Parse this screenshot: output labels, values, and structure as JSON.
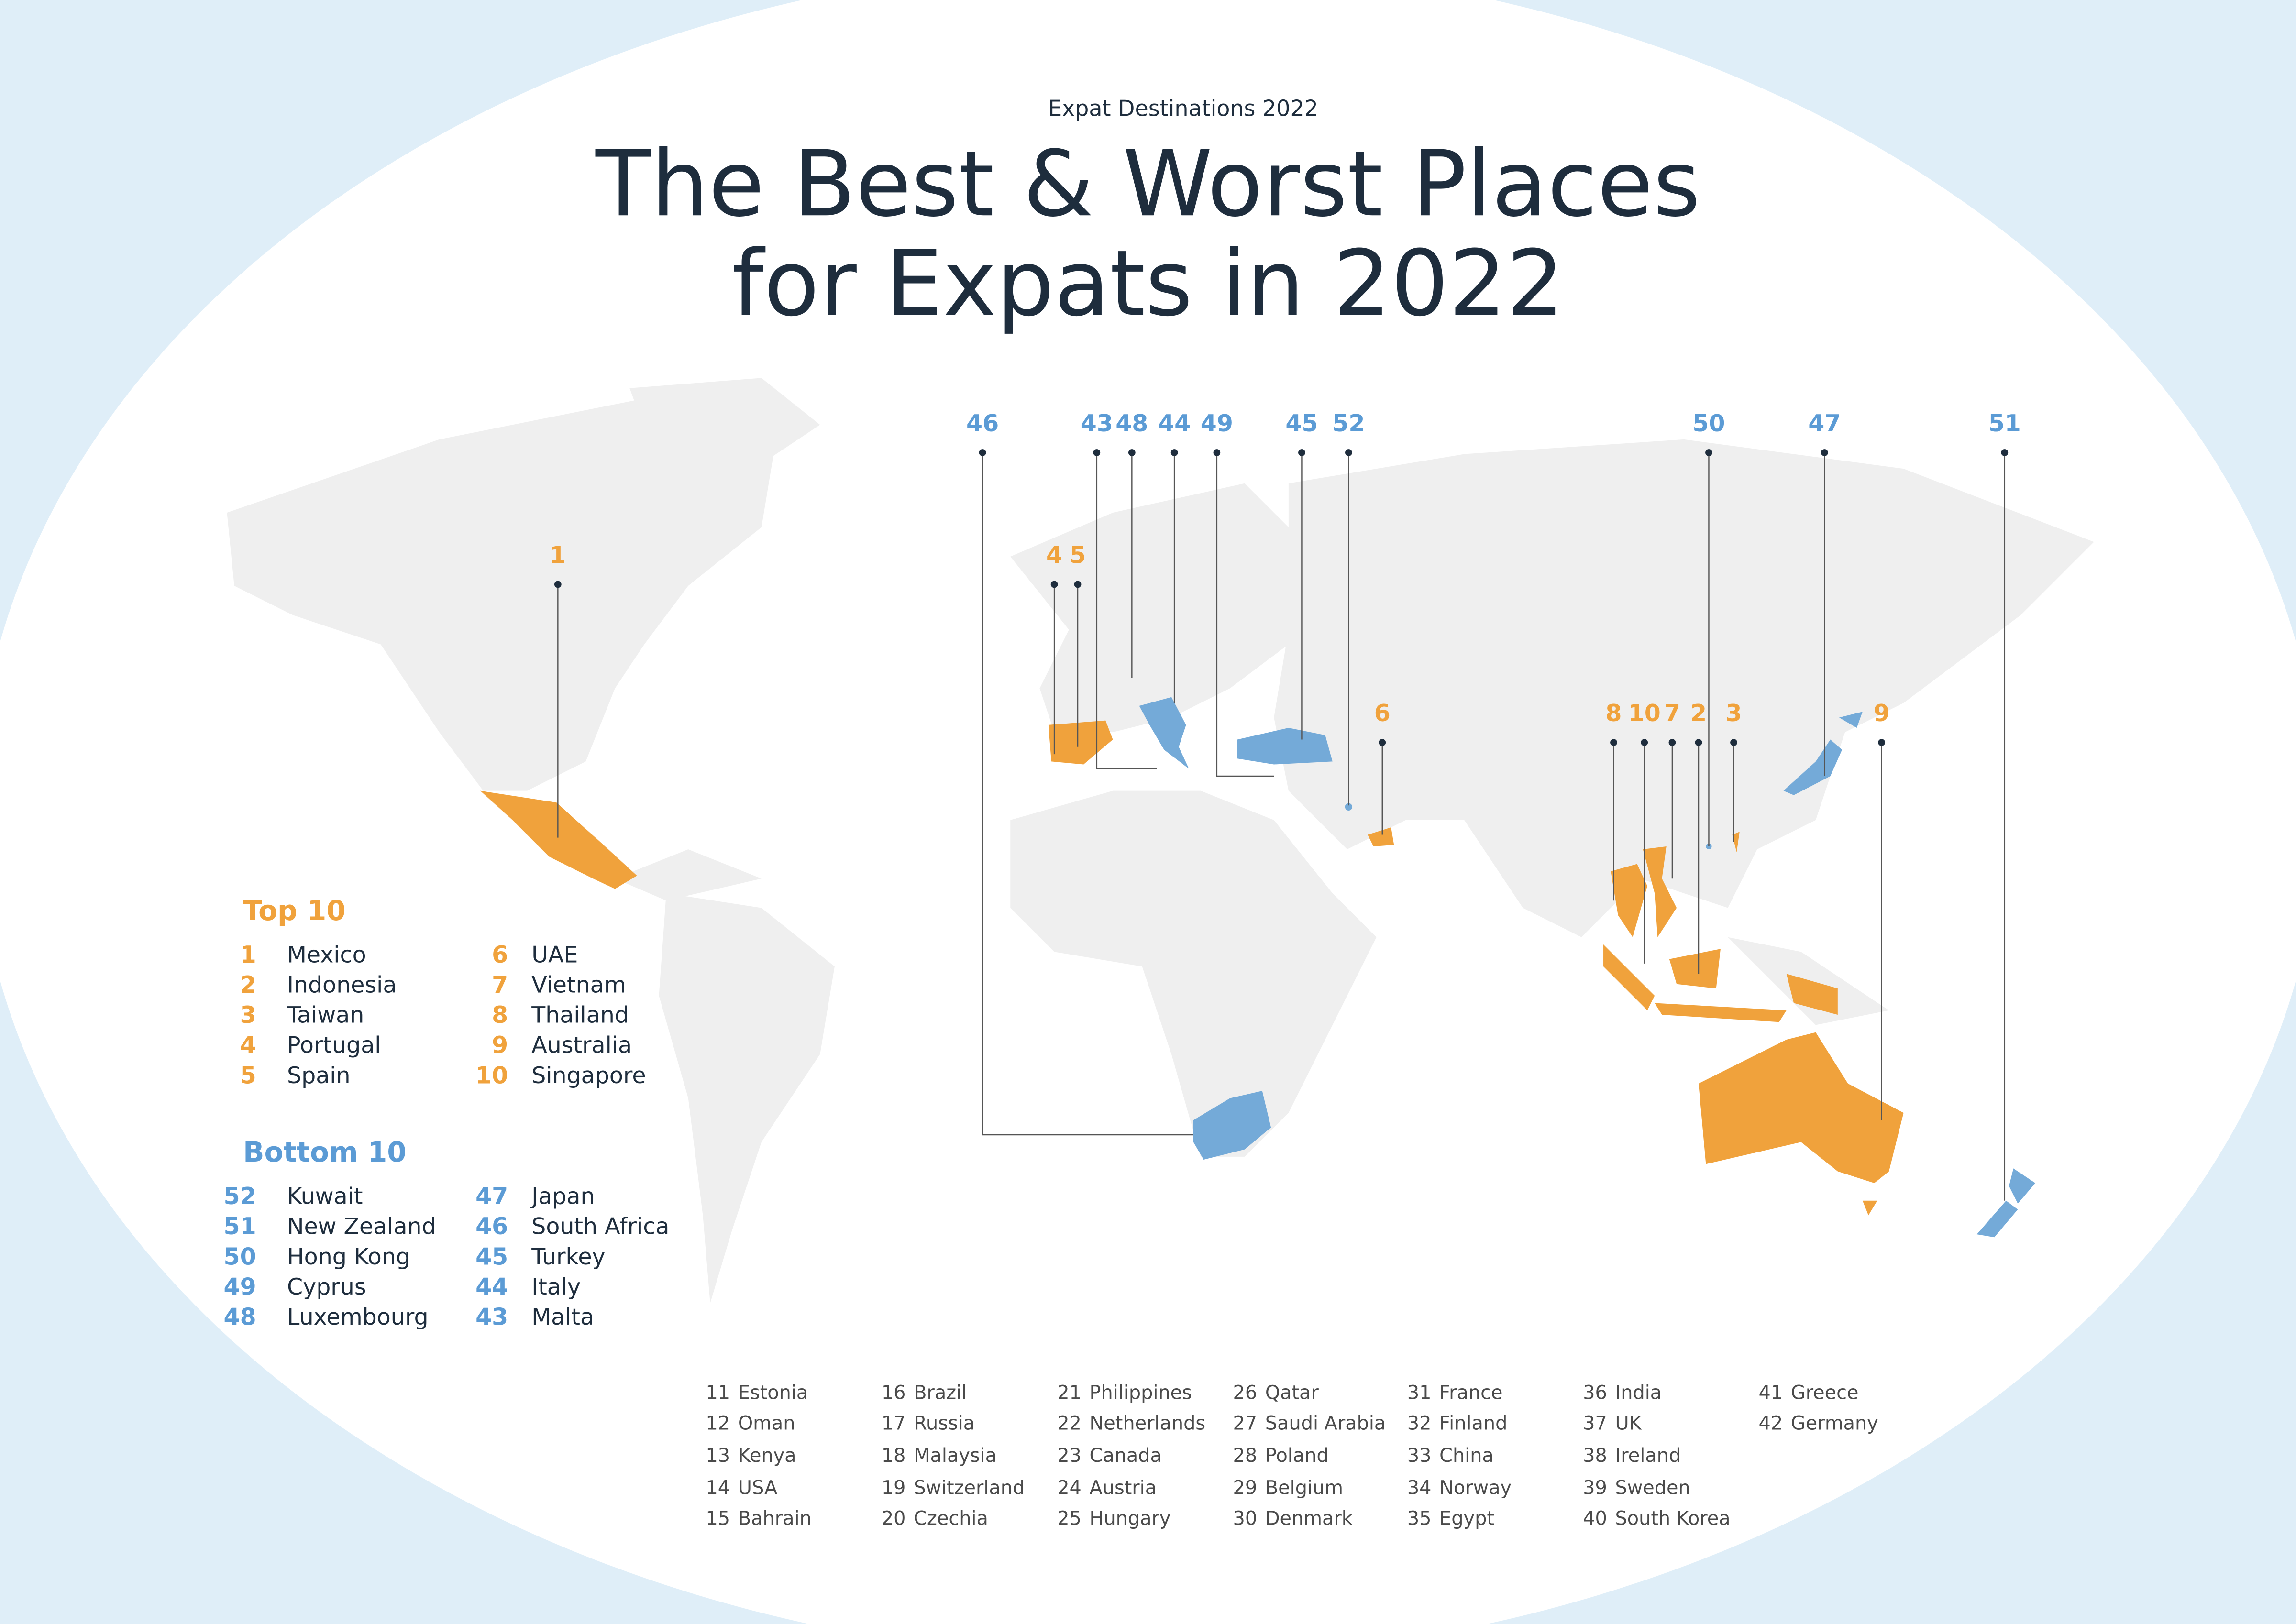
{
  "header": {
    "kicker": "Expat Destinations 2022",
    "title": [
      "The Best & Worst Places",
      "for Expats in 2022"
    ]
  },
  "top_10": {
    "heading": "Top 10",
    "entries": [
      {
        "rank": 1,
        "country": "Mexico"
      },
      {
        "rank": 2,
        "country": "Indonesia"
      },
      {
        "rank": 3,
        "country": "Taiwan"
      },
      {
        "rank": 4,
        "country": "Portugal"
      },
      {
        "rank": 5,
        "country": "Spain"
      },
      {
        "rank": 6,
        "country": "UAE"
      },
      {
        "rank": 7,
        "country": "Vietnam"
      },
      {
        "rank": 8,
        "country": "Thailand"
      },
      {
        "rank": 9,
        "country": "Australia"
      },
      {
        "rank": 10,
        "country": "Singapore"
      }
    ]
  },
  "bottom_10": {
    "heading": "Bottom 10",
    "entries": [
      {
        "rank": 52,
        "country": "Kuwait"
      },
      {
        "rank": 51,
        "country": "New Zealand"
      },
      {
        "rank": 50,
        "country": "Hong Kong"
      },
      {
        "rank": 49,
        "country": "Cyprus"
      },
      {
        "rank": 48,
        "country": "Luxembourg"
      },
      {
        "rank": 47,
        "country": "Japan"
      },
      {
        "rank": 46,
        "country": "South Africa"
      },
      {
        "rank": 45,
        "country": "Turkey"
      },
      {
        "rank": 44,
        "country": "Italy"
      },
      {
        "rank": 43,
        "country": "Malta"
      }
    ]
  },
  "rest": [
    {
      "rank": 11,
      "country": "Estonia"
    },
    {
      "rank": 12,
      "country": "Oman"
    },
    {
      "rank": 13,
      "country": "Kenya"
    },
    {
      "rank": 14,
      "country": "USA"
    },
    {
      "rank": 15,
      "country": "Bahrain"
    },
    {
      "rank": 16,
      "country": "Brazil"
    },
    {
      "rank": 17,
      "country": "Russia"
    },
    {
      "rank": 18,
      "country": "Malaysia"
    },
    {
      "rank": 19,
      "country": "Switzerland"
    },
    {
      "rank": 20,
      "country": "Czechia"
    },
    {
      "rank": 21,
      "country": "Philippines"
    },
    {
      "rank": 22,
      "country": "Netherlands"
    },
    {
      "rank": 23,
      "country": "Canada"
    },
    {
      "rank": 24,
      "country": "Austria"
    },
    {
      "rank": 25,
      "country": "Hungary"
    },
    {
      "rank": 26,
      "country": "Qatar"
    },
    {
      "rank": 27,
      "country": "Saudi Arabia"
    },
    {
      "rank": 28,
      "country": "Poland"
    },
    {
      "rank": 29,
      "country": "Belgium"
    },
    {
      "rank": 30,
      "country": "Denmark"
    },
    {
      "rank": 31,
      "country": "France"
    },
    {
      "rank": 32,
      "country": "Finland"
    },
    {
      "rank": 33,
      "country": "China"
    },
    {
      "rank": 34,
      "country": "Norway"
    },
    {
      "rank": 35,
      "country": "Egypt"
    },
    {
      "rank": 36,
      "country": "India"
    },
    {
      "rank": 37,
      "country": "UK"
    },
    {
      "rank": 38,
      "country": "Ireland"
    },
    {
      "rank": 39,
      "country": "Sweden"
    },
    {
      "rank": 40,
      "country": "South Korea"
    },
    {
      "rank": 41,
      "country": "Greece"
    },
    {
      "rank": 42,
      "country": "Germany"
    }
  ]
}
